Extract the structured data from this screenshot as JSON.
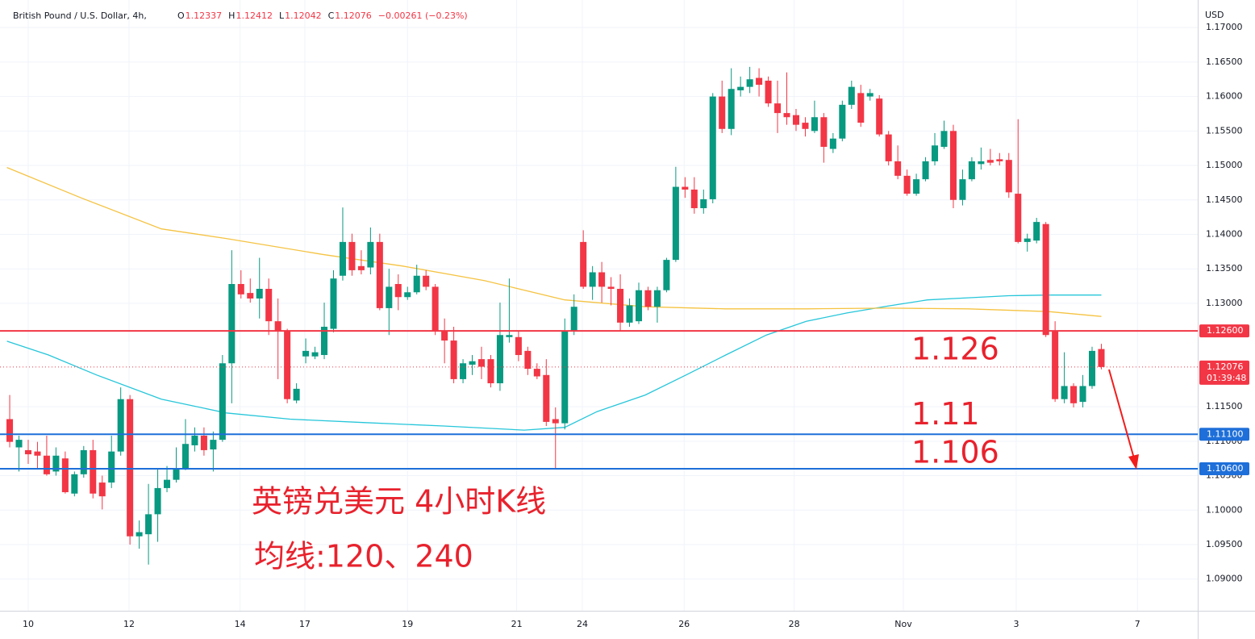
{
  "chart_data": {
    "type": "candlestick",
    "title": "British Pound / U.S. Dollar, 4h,",
    "ohlc_labels": [
      "O",
      "H",
      "L",
      "C"
    ],
    "change_label": "−0.00261 (−0.23%)",
    "currency": "USD",
    "up_color": "#089981",
    "down_color": "#f23645",
    "xlim": [
      -1.05,
      128.42
    ],
    "ylim": [
      1.0854,
      1.174
    ],
    "grid": true,
    "xticks": [
      {
        "value": 2.0,
        "label": "10"
      },
      {
        "value": 12.9,
        "label": "12"
      },
      {
        "value": 24.9,
        "label": "14"
      },
      {
        "value": 31.9,
        "label": "17"
      },
      {
        "value": 43.0,
        "label": "19"
      },
      {
        "value": 54.8,
        "label": "21"
      },
      {
        "value": 61.9,
        "label": "24"
      },
      {
        "value": 72.9,
        "label": "26"
      },
      {
        "value": 84.8,
        "label": "28"
      },
      {
        "value": 96.6,
        "label": "Nov"
      },
      {
        "value": 108.8,
        "label": "3"
      },
      {
        "value": 121.9,
        "label": "7"
      }
    ],
    "yticks": [
      {
        "value": 1.17,
        "label": "1.17000"
      },
      {
        "value": 1.165,
        "label": "1.16500"
      },
      {
        "value": 1.16,
        "label": "1.16000"
      },
      {
        "value": 1.155,
        "label": "1.15500"
      },
      {
        "value": 1.15,
        "label": "1.15000"
      },
      {
        "value": 1.145,
        "label": "1.14500"
      },
      {
        "value": 1.14,
        "label": "1.14000"
      },
      {
        "value": 1.135,
        "label": "1.13500"
      },
      {
        "value": 1.13,
        "label": "1.13000"
      },
      {
        "value": 1.115,
        "label": "1.11500"
      },
      {
        "value": 1.11,
        "label": "1.11000"
      },
      {
        "value": 1.105,
        "label": "1.10500"
      },
      {
        "value": 1.1,
        "label": "1.10000"
      },
      {
        "value": 1.095,
        "label": "1.09500"
      },
      {
        "value": 1.09,
        "label": "1.09000"
      }
    ],
    "candles": [
      [
        1.1132,
        1.1167,
        1.1091,
        1.1099
      ],
      [
        1.1091,
        1.1108,
        1.1056,
        1.1102
      ],
      [
        1.1087,
        1.1102,
        1.1067,
        1.1081
      ],
      [
        1.1085,
        1.1099,
        1.1061,
        1.1079
      ],
      [
        1.1079,
        1.1108,
        1.105,
        1.1052
      ],
      [
        1.1056,
        1.1091,
        1.105,
        1.1079
      ],
      [
        1.1075,
        1.1085,
        1.1024,
        1.1026
      ],
      [
        1.1024,
        1.1056,
        1.102,
        1.1052
      ],
      [
        1.1052,
        1.1093,
        1.1047,
        1.1087
      ],
      [
        1.1087,
        1.1102,
        1.1017,
        1.1024
      ],
      [
        1.104,
        1.105,
        1.1001,
        1.102
      ],
      [
        1.104,
        1.1108,
        1.1032,
        1.1085
      ],
      [
        1.1085,
        1.1178,
        1.1079,
        1.1161
      ],
      [
        1.1161,
        1.1167,
        1.095,
        1.0962
      ],
      [
        1.0962,
        1.0985,
        1.0944,
        1.0968
      ],
      [
        1.0965,
        1.1038,
        1.0921,
        1.0994
      ],
      [
        1.0994,
        1.1061,
        1.0954,
        1.1032
      ],
      [
        1.1032,
        1.1064,
        1.1026,
        1.1044
      ],
      [
        1.1044,
        1.1091,
        1.104,
        1.1061
      ],
      [
        1.1061,
        1.1132,
        1.1058,
        1.1096
      ],
      [
        1.1094,
        1.112,
        1.1085,
        1.1108
      ],
      [
        1.1108,
        1.112,
        1.1079,
        1.1087
      ],
      [
        1.1088,
        1.1114,
        1.1056,
        1.1102
      ],
      [
        1.1102,
        1.1225,
        1.1099,
        1.1213
      ],
      [
        1.1213,
        1.1377,
        1.1155,
        1.1328
      ],
      [
        1.1328,
        1.1348,
        1.1307,
        1.1313
      ],
      [
        1.1315,
        1.1336,
        1.1301,
        1.1307
      ],
      [
        1.1307,
        1.1366,
        1.1278,
        1.1321
      ],
      [
        1.1321,
        1.1336,
        1.1254,
        1.1274
      ],
      [
        1.1274,
        1.1307,
        1.119,
        1.126
      ],
      [
        1.126,
        1.1263,
        1.1155,
        1.1161
      ],
      [
        1.1159,
        1.1184,
        1.1155,
        1.1176
      ],
      [
        1.1223,
        1.1249,
        1.1213,
        1.1231
      ],
      [
        1.1223,
        1.1237,
        1.1219,
        1.1229
      ],
      [
        1.1225,
        1.1301,
        1.1219,
        1.1266
      ],
      [
        1.1263,
        1.1348,
        1.1258,
        1.1336
      ],
      [
        1.134,
        1.1439,
        1.1333,
        1.1389
      ],
      [
        1.1389,
        1.1401,
        1.134,
        1.1348
      ],
      [
        1.1354,
        1.1377,
        1.1342,
        1.1348
      ],
      [
        1.1352,
        1.141,
        1.1342,
        1.1389
      ],
      [
        1.1389,
        1.1401,
        1.129,
        1.1293
      ],
      [
        1.1293,
        1.135,
        1.1254,
        1.1324
      ],
      [
        1.1328,
        1.1342,
        1.129,
        1.1309
      ],
      [
        1.1309,
        1.1324,
        1.1305,
        1.1316
      ],
      [
        1.1316,
        1.1356,
        1.1313,
        1.134
      ],
      [
        1.134,
        1.1348,
        1.1319,
        1.1324
      ],
      [
        1.1324,
        1.1328,
        1.1254,
        1.126
      ],
      [
        1.126,
        1.1278,
        1.1213,
        1.1246
      ],
      [
        1.1246,
        1.1266,
        1.1184,
        1.119
      ],
      [
        1.119,
        1.1219,
        1.1184,
        1.1213
      ],
      [
        1.1211,
        1.1225,
        1.1196,
        1.1216
      ],
      [
        1.1219,
        1.1237,
        1.119,
        1.1208
      ],
      [
        1.1219,
        1.1225,
        1.1178,
        1.1184
      ],
      [
        1.1184,
        1.1301,
        1.1173,
        1.1254
      ],
      [
        1.1251,
        1.1336,
        1.1243,
        1.1254
      ],
      [
        1.1251,
        1.126,
        1.1216,
        1.1225
      ],
      [
        1.1231,
        1.1237,
        1.1196,
        1.1205
      ],
      [
        1.1205,
        1.1213,
        1.119,
        1.1194
      ],
      [
        1.1196,
        1.1219,
        1.1122,
        1.1128
      ],
      [
        1.1132,
        1.1149,
        1.1059,
        1.1126
      ],
      [
        1.1126,
        1.1278,
        1.1117,
        1.126
      ],
      [
        1.126,
        1.1313,
        1.1254,
        1.1295
      ],
      [
        1.1389,
        1.1406,
        1.1321,
        1.1324
      ],
      [
        1.1324,
        1.1354,
        1.1305,
        1.1345
      ],
      [
        1.1345,
        1.136,
        1.1301,
        1.1324
      ],
      [
        1.1324,
        1.1338,
        1.1297,
        1.1321
      ],
      [
        1.1321,
        1.1342,
        1.126,
        1.1272
      ],
      [
        1.1272,
        1.1307,
        1.1266,
        1.1297
      ],
      [
        1.1274,
        1.133,
        1.127,
        1.1319
      ],
      [
        1.1319,
        1.1324,
        1.129,
        1.1295
      ],
      [
        1.1295,
        1.1324,
        1.1272,
        1.1319
      ],
      [
        1.1319,
        1.1366,
        1.1316,
        1.1363
      ],
      [
        1.1363,
        1.1498,
        1.136,
        1.1469
      ],
      [
        1.1469,
        1.1483,
        1.1453,
        1.1465
      ],
      [
        1.1465,
        1.1483,
        1.143,
        1.1438
      ],
      [
        1.1438,
        1.1465,
        1.143,
        1.1451
      ],
      [
        1.1451,
        1.1605,
        1.1445,
        1.16
      ],
      [
        1.16,
        1.1623,
        1.1547,
        1.1553
      ],
      [
        1.1553,
        1.1641,
        1.1544,
        1.1611
      ],
      [
        1.1609,
        1.1629,
        1.16,
        1.1614
      ],
      [
        1.1614,
        1.1643,
        1.1605,
        1.1625
      ],
      [
        1.1627,
        1.1641,
        1.16,
        1.1617
      ],
      [
        1.1623,
        1.1629,
        1.1585,
        1.159
      ],
      [
        1.159,
        1.1623,
        1.1547,
        1.1576
      ],
      [
        1.1576,
        1.1635,
        1.1559,
        1.157
      ],
      [
        1.1573,
        1.1582,
        1.155,
        1.1559
      ],
      [
        1.1562,
        1.157,
        1.1542,
        1.1553
      ],
      [
        1.155,
        1.1594,
        1.1547,
        1.157
      ],
      [
        1.157,
        1.1576,
        1.1504,
        1.1527
      ],
      [
        1.1524,
        1.1547,
        1.1518,
        1.1539
      ],
      [
        1.1539,
        1.1594,
        1.1535,
        1.1588
      ],
      [
        1.1588,
        1.1623,
        1.1582,
        1.1614
      ],
      [
        1.1605,
        1.1617,
        1.1556,
        1.1562
      ],
      [
        1.16,
        1.1611,
        1.1594,
        1.1605
      ],
      [
        1.1597,
        1.1602,
        1.1542,
        1.1545
      ],
      [
        1.1545,
        1.155,
        1.15,
        1.1506
      ],
      [
        1.1506,
        1.1529,
        1.148,
        1.1485
      ],
      [
        1.1485,
        1.1494,
        1.1456,
        1.1459
      ],
      [
        1.1459,
        1.1488,
        1.1456,
        1.148
      ],
      [
        1.148,
        1.1512,
        1.1477,
        1.1506
      ],
      [
        1.1506,
        1.1547,
        1.15,
        1.1529
      ],
      [
        1.1527,
        1.1565,
        1.1524,
        1.155
      ],
      [
        1.155,
        1.1559,
        1.1438,
        1.145
      ],
      [
        1.145,
        1.1494,
        1.1442,
        1.148
      ],
      [
        1.148,
        1.1512,
        1.1477,
        1.1506
      ],
      [
        1.1502,
        1.1526,
        1.1494,
        1.1506
      ],
      [
        1.1508,
        1.1524,
        1.15,
        1.1504
      ],
      [
        1.1509,
        1.1518,
        1.15,
        1.1506
      ],
      [
        1.1508,
        1.1518,
        1.1453,
        1.1461
      ],
      [
        1.1459,
        1.1567,
        1.1387,
        1.1389
      ],
      [
        1.1389,
        1.1401,
        1.1375,
        1.1394
      ],
      [
        1.1391,
        1.1424,
        1.1387,
        1.1418
      ],
      [
        1.1415,
        1.1418,
        1.1251,
        1.1254
      ],
      [
        1.126,
        1.1274,
        1.1157,
        1.1161
      ],
      [
        1.1161,
        1.1229,
        1.1155,
        1.118
      ],
      [
        1.118,
        1.1184,
        1.1149,
        1.1155
      ],
      [
        1.1157,
        1.1196,
        1.1149,
        1.118
      ],
      [
        1.118,
        1.1237,
        1.1176,
        1.1231
      ],
      [
        1.12337,
        1.12412,
        1.12042,
        1.12076
      ]
    ],
    "series": [
      {
        "color": "#26c6da",
        "x": [
          -0.3,
          4.2,
          9.4,
          16.4,
          23.4,
          30.3,
          38.2,
          46.9,
          55.6,
          60.0,
          63.5,
          68.7,
          73.1,
          77.4,
          81.8,
          86.1,
          90.5,
          94.9,
          99.2,
          103.6,
          108.0,
          112.3,
          118.0
        ],
        "values": [
          1.1245,
          1.1225,
          1.1196,
          1.1161,
          1.1141,
          1.1132,
          1.1127,
          1.1122,
          1.1116,
          1.112,
          1.1143,
          1.1167,
          1.1196,
          1.1225,
          1.1254,
          1.1274,
          1.1286,
          1.1296,
          1.1305,
          1.1308,
          1.1311,
          1.1312,
          1.1312
        ]
      },
      {
        "color": "#f5c342",
        "x": [
          -0.3,
          7.7,
          16.4,
          23.4,
          33.8,
          42.5,
          51.3,
          60.0,
          68.7,
          77.4,
          86.1,
          94.9,
          103.6,
          112.3,
          118.0
        ],
        "values": [
          1.1497,
          1.1453,
          1.1408,
          1.1394,
          1.1371,
          1.1354,
          1.1333,
          1.1305,
          1.1295,
          1.1292,
          1.1292,
          1.1293,
          1.1292,
          1.1288,
          1.1281
        ]
      }
    ],
    "levels": [
      {
        "value": 1.126,
        "label": "1.12600",
        "note": "1.126",
        "color": "#f23645"
      },
      {
        "value": 1.111,
        "label": "1.11100",
        "note": "1.11",
        "color": "#1e6fd9"
      },
      {
        "value": 1.106,
        "label": "1.10600",
        "note": "1.106",
        "color": "#1e6fd9"
      }
    ],
    "last_price": {
      "value": 1.12076,
      "label": "1.12076",
      "countdown": "01:39:48"
    },
    "annotations": [
      "英镑兑美元 4小时K线",
      "均线:120、240"
    ]
  }
}
